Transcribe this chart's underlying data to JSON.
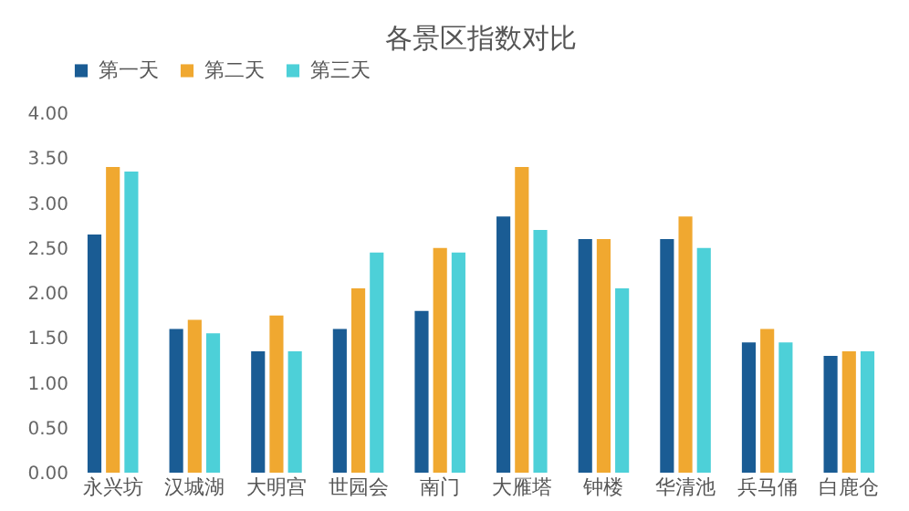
{
  "chart_data": {
    "type": "bar",
    "title": "各景区指数对比",
    "categories": [
      "永兴坊",
      "汉城湖",
      "大明宫",
      "世园会",
      "南门",
      "大雁塔",
      "钟楼",
      "华清池",
      "兵马俑",
      "白鹿仓"
    ],
    "series": [
      {
        "name": "第一天",
        "color": "#1a5c94",
        "values": [
          2.65,
          1.6,
          1.35,
          1.6,
          1.8,
          2.85,
          2.6,
          2.6,
          1.45,
          1.3
        ]
      },
      {
        "name": "第二天",
        "color": "#f0a830",
        "values": [
          3.4,
          1.7,
          1.75,
          2.05,
          2.5,
          3.4,
          2.6,
          2.85,
          1.6,
          1.35
        ]
      },
      {
        "name": "第三天",
        "color": "#4dd0d8",
        "values": [
          3.35,
          1.55,
          1.35,
          2.45,
          2.45,
          2.7,
          2.05,
          2.5,
          1.45,
          1.35
        ]
      }
    ],
    "ylim": [
      0,
      4
    ],
    "yticks": [
      {
        "value": 0,
        "label": "0.00"
      },
      {
        "value": 0.5,
        "label": "0.50"
      },
      {
        "value": 1,
        "label": "1.00"
      },
      {
        "value": 1.5,
        "label": "1.50"
      },
      {
        "value": 2,
        "label": "2.00"
      },
      {
        "value": 2.5,
        "label": "2.50"
      },
      {
        "value": 3,
        "label": "3.00"
      },
      {
        "value": 3.5,
        "label": "3.50"
      },
      {
        "value": 4,
        "label": "4.00"
      }
    ],
    "legend": "top",
    "grid": false
  }
}
